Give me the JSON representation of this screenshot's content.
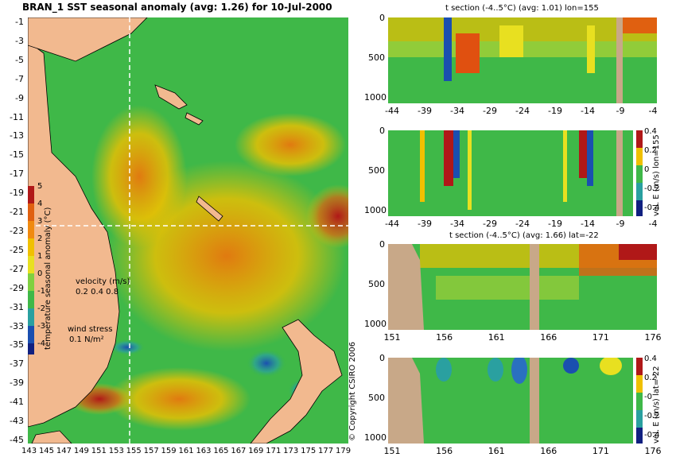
{
  "map": {
    "title": "BRAN_1 SST seasonal anomaly (avg: 1.26) for 10-Jul-2000",
    "y_ticks": [
      "-1",
      "-3",
      "-5",
      "-7",
      "-9",
      "-11",
      "-13",
      "-15",
      "-17",
      "-19",
      "-21",
      "-23",
      "-25",
      "-27",
      "-29",
      "-31",
      "-33",
      "-35",
      "-37",
      "-39",
      "-41",
      "-43",
      "-45"
    ],
    "x_ticks": [
      "143",
      "145",
      "147",
      "149",
      "151",
      "153",
      "155",
      "157",
      "159",
      "161",
      "163",
      "165",
      "167",
      "169",
      "171",
      "173",
      "175",
      "177",
      "179"
    ],
    "colorbar_ticks": [
      "5",
      "4",
      "3",
      "2",
      "1",
      "0",
      "-1",
      "-2",
      "-3",
      "-4"
    ],
    "colorbar_label": "temperature seasonal anomaly (°C)",
    "velocity_label": "velocity (m/s)",
    "velocity_scale": "0.2 0.4 0.8",
    "wind_label": "wind stress",
    "wind_scale": "0.1 N/m²",
    "copyright": "© Copyright CSIRO 2006",
    "colors": {
      "land": "#f2b98f",
      "ocean": "#39b54a",
      "warm": "#f0c000"
    }
  },
  "chart_data": [
    {
      "type": "heatmap",
      "title": "BRAN_1 SST seasonal anomaly (avg: 1.26) for 10-Jul-2000",
      "x": [
        143,
        145,
        147,
        149,
        151,
        153,
        155,
        157,
        159,
        161,
        163,
        165,
        167,
        169,
        171,
        173,
        175,
        177,
        179
      ],
      "y": [
        -1,
        -3,
        -5,
        -7,
        -9,
        -11,
        -13,
        -15,
        -17,
        -19,
        -21,
        -23,
        -25,
        -27,
        -29,
        -31,
        -33,
        -35,
        -37,
        -39,
        -41,
        -43,
        -45
      ],
      "clim": [
        -4,
        5
      ],
      "colorbar_label": "temperature seasonal anomaly (°C)"
    },
    {
      "type": "heatmap",
      "title": "t section (-4..5°C) (avg: 1.01) lon=155",
      "x": [
        -44,
        -39,
        -34,
        -29,
        -24,
        -19,
        -14,
        -9,
        -4
      ],
      "y": [
        0,
        500,
        1000
      ],
      "y_reversed": true
    },
    {
      "type": "heatmap",
      "title": "",
      "x": [
        -44,
        -39,
        -34,
        -29,
        -24,
        -19,
        -14,
        -9,
        -4
      ],
      "y": [
        0,
        500,
        1000
      ],
      "y_reversed": true,
      "clim": [
        -0.4,
        0.4
      ],
      "colorbar_ticks": [
        "0.4",
        "0.2",
        "0",
        "-0.2",
        "-0.4"
      ],
      "colorbar_label": "vel. E (m/s) lon=155"
    },
    {
      "type": "heatmap",
      "title": "t section (-4..5°C) (avg: 1.66) lat=-22",
      "x": [
        151,
        156,
        161,
        166,
        171,
        176
      ],
      "y": [
        0,
        500,
        1000
      ],
      "y_reversed": true
    },
    {
      "type": "heatmap",
      "title": "",
      "x": [
        151,
        156,
        161,
        166,
        171,
        176
      ],
      "y": [
        0,
        500,
        1000
      ],
      "y_reversed": true,
      "clim": [
        -0.4,
        0.4
      ],
      "colorbar_ticks": [
        "0.4",
        "0.2",
        "-0",
        "-0.2",
        "-0.4"
      ],
      "colorbar_label": "vel. E (m/s) lat=-22"
    }
  ],
  "sections": {
    "s1": {
      "title": "t section (-4..5°C) (avg: 1.01) lon=155",
      "y_ticks": [
        "0",
        "500",
        "1000"
      ],
      "x_ticks": [
        "-44",
        "-39",
        "-34",
        "-29",
        "-24",
        "-19",
        "-14",
        "-9",
        "-4"
      ]
    },
    "s2": {
      "y_ticks": [
        "0",
        "500",
        "1000"
      ],
      "x_ticks": [
        "-44",
        "-39",
        "-34",
        "-29",
        "-24",
        "-19",
        "-14",
        "-9",
        "-4"
      ],
      "cb_ticks": [
        "0.4",
        "0.2",
        "0",
        "-0.2",
        "-0.4"
      ],
      "cb_label": "vel. E (m/s) lon=155"
    },
    "s3": {
      "title": "t section (-4..5°C) (avg: 1.66) lat=-22",
      "y_ticks": [
        "0",
        "500",
        "1000"
      ],
      "x_ticks": [
        "151",
        "156",
        "161",
        "166",
        "171",
        "176"
      ]
    },
    "s4": {
      "y_ticks": [
        "0",
        "500",
        "1000"
      ],
      "x_ticks": [
        "151",
        "156",
        "161",
        "166",
        "171",
        "176"
      ],
      "cb_ticks": [
        "0.4",
        "0.2",
        "-0",
        "-0.2",
        "-0.4"
      ],
      "cb_label": "vel. E (m/s) lat=-22"
    }
  }
}
